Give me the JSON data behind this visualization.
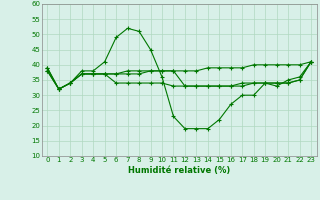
{
  "x": [
    0,
    1,
    2,
    3,
    4,
    5,
    6,
    7,
    8,
    9,
    10,
    11,
    12,
    13,
    14,
    15,
    16,
    17,
    18,
    19,
    20,
    21,
    22,
    23
  ],
  "line1": [
    39,
    32,
    34,
    38,
    38,
    41,
    49,
    52,
    51,
    45,
    36,
    23,
    19,
    19,
    19,
    22,
    27,
    30,
    30,
    34,
    33,
    35,
    36,
    41
  ],
  "line2": [
    38,
    32,
    34,
    37,
    37,
    37,
    37,
    37,
    37,
    38,
    38,
    38,
    33,
    33,
    33,
    33,
    33,
    33,
    34,
    34,
    34,
    34,
    35,
    41
  ],
  "line3": [
    38,
    32,
    34,
    37,
    37,
    37,
    34,
    34,
    34,
    34,
    34,
    33,
    33,
    33,
    33,
    33,
    33,
    34,
    34,
    34,
    34,
    34,
    35,
    41
  ],
  "line4": [
    39,
    32,
    34,
    37,
    37,
    37,
    37,
    38,
    38,
    38,
    38,
    38,
    38,
    38,
    39,
    39,
    39,
    39,
    40,
    40,
    40,
    40,
    40,
    41
  ],
  "bg_color": "#d8f0e8",
  "grid_color": "#b0d8c0",
  "line_color": "#007700",
  "xlabel": "Humidité relative (%)",
  "ylim": [
    10,
    60
  ],
  "xlim": [
    -0.5,
    23.5
  ],
  "yticks": [
    10,
    15,
    20,
    25,
    30,
    35,
    40,
    45,
    50,
    55,
    60
  ],
  "xticks": [
    0,
    1,
    2,
    3,
    4,
    5,
    6,
    7,
    8,
    9,
    10,
    11,
    12,
    13,
    14,
    15,
    16,
    17,
    18,
    19,
    20,
    21,
    22,
    23
  ]
}
